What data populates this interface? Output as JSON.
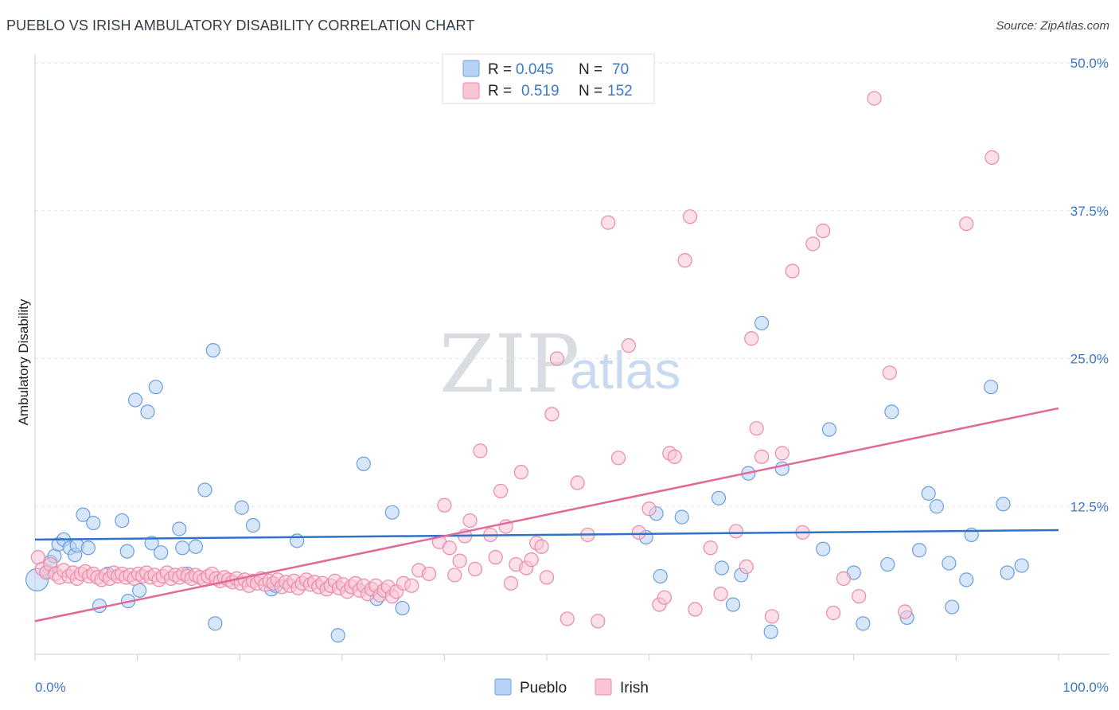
{
  "title": "PUEBLO VS IRISH AMBULATORY DISABILITY CORRELATION CHART",
  "source": "Source: ZipAtlas.com",
  "watermark": {
    "zip": "ZIP",
    "atlas": "atlas"
  },
  "colors": {
    "pueblo_fill": "#b8d2f5",
    "pueblo_stroke": "#6a9fdc",
    "pueblo_line": "#2f72c9",
    "irish_fill": "#f9c4d5",
    "irish_stroke": "#e98aa9",
    "irish_line": "#e0689a",
    "tick_text": "#3b78c6",
    "grid": "#e3e6ea"
  },
  "legend_top": {
    "rows": [
      {
        "r_label": "R =",
        "r": "0.045",
        "n_label": "N =",
        "n": "70"
      },
      {
        "r_label": "R =",
        "r": "0.519",
        "n_label": "N =",
        "n": "152"
      }
    ]
  },
  "chart_data": {
    "type": "scatter",
    "title": "PUEBLO VS IRISH AMBULATORY DISABILITY CORRELATION CHART",
    "xlabel": "",
    "ylabel": "Ambulatory Disability",
    "xlim": [
      0,
      100
    ],
    "ylim": [
      0,
      50
    ],
    "x_tick_labels": [
      "0.0%",
      "100.0%"
    ],
    "y_ticks": [
      12.5,
      25.0,
      37.5,
      50.0
    ],
    "y_tick_labels": [
      "12.5%",
      "25.0%",
      "37.5%",
      "50.0%"
    ],
    "grid": "horizontal dashed",
    "legend": "top-center and bottom-center",
    "series": [
      {
        "name": "Pueblo",
        "trend": {
          "x0": 0,
          "y0": 9.7,
          "x1": 100,
          "y1": 10.5
        },
        "points": [
          [
            0.2,
            6.3
          ],
          [
            1.2,
            7.0
          ],
          [
            1.5,
            7.8
          ],
          [
            1.9,
            8.3
          ],
          [
            2.3,
            9.3
          ],
          [
            2.8,
            9.7
          ],
          [
            3.4,
            9.0
          ],
          [
            3.9,
            8.4
          ],
          [
            4.1,
            9.2
          ],
          [
            4.7,
            11.8
          ],
          [
            5.2,
            9.0
          ],
          [
            5.7,
            11.1
          ],
          [
            6.3,
            4.1
          ],
          [
            7.1,
            6.8
          ],
          [
            8.5,
            11.3
          ],
          [
            9.0,
            8.7
          ],
          [
            9.1,
            4.5
          ],
          [
            9.8,
            21.5
          ],
          [
            10.2,
            5.4
          ],
          [
            11.0,
            20.5
          ],
          [
            11.4,
            9.4
          ],
          [
            11.8,
            22.6
          ],
          [
            12.3,
            8.6
          ],
          [
            14.1,
            10.6
          ],
          [
            14.4,
            9.0
          ],
          [
            14.9,
            6.8
          ],
          [
            15.7,
            9.1
          ],
          [
            16.6,
            13.9
          ],
          [
            17.4,
            25.7
          ],
          [
            17.6,
            2.6
          ],
          [
            20.2,
            12.4
          ],
          [
            21.3,
            10.9
          ],
          [
            23.1,
            5.5
          ],
          [
            23.5,
            5.8
          ],
          [
            25.6,
            9.6
          ],
          [
            29.6,
            1.6
          ],
          [
            32.1,
            16.1
          ],
          [
            33.4,
            4.7
          ],
          [
            34.9,
            12.0
          ],
          [
            35.9,
            3.9
          ],
          [
            59.7,
            9.9
          ],
          [
            60.7,
            11.9
          ],
          [
            61.1,
            6.6
          ],
          [
            63.2,
            11.6
          ],
          [
            66.8,
            13.2
          ],
          [
            67.1,
            7.3
          ],
          [
            68.2,
            4.2
          ],
          [
            69.0,
            6.7
          ],
          [
            69.7,
            15.3
          ],
          [
            71.0,
            28.0
          ],
          [
            71.9,
            1.9
          ],
          [
            73.0,
            15.7
          ],
          [
            77.0,
            8.9
          ],
          [
            77.6,
            19.0
          ],
          [
            80.0,
            6.9
          ],
          [
            80.9,
            2.6
          ],
          [
            83.3,
            7.6
          ],
          [
            83.7,
            20.5
          ],
          [
            85.2,
            3.1
          ],
          [
            86.4,
            8.8
          ],
          [
            87.3,
            13.6
          ],
          [
            88.1,
            12.5
          ],
          [
            89.3,
            7.7
          ],
          [
            89.6,
            4.0
          ],
          [
            91.0,
            6.3
          ],
          [
            91.5,
            10.1
          ],
          [
            93.4,
            22.6
          ],
          [
            94.6,
            12.7
          ],
          [
            95.0,
            6.9
          ],
          [
            96.4,
            7.5
          ]
        ]
      },
      {
        "name": "Irish",
        "trend": {
          "x0": 0,
          "y0": 2.8,
          "x1": 100,
          "y1": 20.8
        },
        "points": [
          [
            0.3,
            8.2
          ],
          [
            0.7,
            7.2
          ],
          [
            1.1,
            6.9
          ],
          [
            1.5,
            7.6
          ],
          [
            2.0,
            6.8
          ],
          [
            2.4,
            6.5
          ],
          [
            2.8,
            7.1
          ],
          [
            3.3,
            6.6
          ],
          [
            3.7,
            6.9
          ],
          [
            4.1,
            6.4
          ],
          [
            4.5,
            6.8
          ],
          [
            4.9,
            7.0
          ],
          [
            5.3,
            6.6
          ],
          [
            5.7,
            6.8
          ],
          [
            6.1,
            6.5
          ],
          [
            6.5,
            6.3
          ],
          [
            6.9,
            6.7
          ],
          [
            7.3,
            6.4
          ],
          [
            7.7,
            6.9
          ],
          [
            8.1,
            6.6
          ],
          [
            8.5,
            6.8
          ],
          [
            8.9,
            6.5
          ],
          [
            9.3,
            6.7
          ],
          [
            9.7,
            6.4
          ],
          [
            10.1,
            6.8
          ],
          [
            10.5,
            6.6
          ],
          [
            10.9,
            6.9
          ],
          [
            11.3,
            6.5
          ],
          [
            11.7,
            6.7
          ],
          [
            12.1,
            6.3
          ],
          [
            12.5,
            6.6
          ],
          [
            12.9,
            6.9
          ],
          [
            13.3,
            6.4
          ],
          [
            13.7,
            6.7
          ],
          [
            14.1,
            6.5
          ],
          [
            14.5,
            6.8
          ],
          [
            14.9,
            6.6
          ],
          [
            15.3,
            6.4
          ],
          [
            15.7,
            6.7
          ],
          [
            16.1,
            6.5
          ],
          [
            16.5,
            6.3
          ],
          [
            16.9,
            6.6
          ],
          [
            17.3,
            6.8
          ],
          [
            17.7,
            6.4
          ],
          [
            18.1,
            6.2
          ],
          [
            18.5,
            6.5
          ],
          [
            18.9,
            6.3
          ],
          [
            19.3,
            6.1
          ],
          [
            19.7,
            6.4
          ],
          [
            20.1,
            6.0
          ],
          [
            20.5,
            6.3
          ],
          [
            20.9,
            5.8
          ],
          [
            21.3,
            6.2
          ],
          [
            21.7,
            6.0
          ],
          [
            22.1,
            6.4
          ],
          [
            22.5,
            5.9
          ],
          [
            22.9,
            6.2
          ],
          [
            23.3,
            6.0
          ],
          [
            23.7,
            6.3
          ],
          [
            24.1,
            5.7
          ],
          [
            24.5,
            6.1
          ],
          [
            24.9,
            5.8
          ],
          [
            25.3,
            6.2
          ],
          [
            25.7,
            5.6
          ],
          [
            26.1,
            6.0
          ],
          [
            26.5,
            6.3
          ],
          [
            26.9,
            5.9
          ],
          [
            27.3,
            6.1
          ],
          [
            27.7,
            5.7
          ],
          [
            28.1,
            6.0
          ],
          [
            28.5,
            5.5
          ],
          [
            28.9,
            5.8
          ],
          [
            29.3,
            6.2
          ],
          [
            29.7,
            5.6
          ],
          [
            30.1,
            5.9
          ],
          [
            30.5,
            5.3
          ],
          [
            30.9,
            5.7
          ],
          [
            31.3,
            6.0
          ],
          [
            31.7,
            5.4
          ],
          [
            32.1,
            5.8
          ],
          [
            32.5,
            5.1
          ],
          [
            32.9,
            5.5
          ],
          [
            33.3,
            5.8
          ],
          [
            33.7,
            5.0
          ],
          [
            34.1,
            5.4
          ],
          [
            34.5,
            5.7
          ],
          [
            34.9,
            4.9
          ],
          [
            35.3,
            5.3
          ],
          [
            36.0,
            6.0
          ],
          [
            36.8,
            5.8
          ],
          [
            37.5,
            7.1
          ],
          [
            38.5,
            6.8
          ],
          [
            39.5,
            9.5
          ],
          [
            40.0,
            12.6
          ],
          [
            40.5,
            9.0
          ],
          [
            41.0,
            6.7
          ],
          [
            41.5,
            7.9
          ],
          [
            42.0,
            10.0
          ],
          [
            42.5,
            11.3
          ],
          [
            43.0,
            7.2
          ],
          [
            43.5,
            17.2
          ],
          [
            44.5,
            10.1
          ],
          [
            45.0,
            8.2
          ],
          [
            45.5,
            13.8
          ],
          [
            46.0,
            10.8
          ],
          [
            46.5,
            6.0
          ],
          [
            47.0,
            7.6
          ],
          [
            47.5,
            15.4
          ],
          [
            48.0,
            7.3
          ],
          [
            48.5,
            8.0
          ],
          [
            49.0,
            9.4
          ],
          [
            49.5,
            9.1
          ],
          [
            50.0,
            6.5
          ],
          [
            50.5,
            20.3
          ],
          [
            51.0,
            25.0
          ],
          [
            52.0,
            3.0
          ],
          [
            53.0,
            14.5
          ],
          [
            54.0,
            10.1
          ],
          [
            55.0,
            2.8
          ],
          [
            56.0,
            36.5
          ],
          [
            57.0,
            16.6
          ],
          [
            58.0,
            26.1
          ],
          [
            59.0,
            10.3
          ],
          [
            60.0,
            12.3
          ],
          [
            61.0,
            4.2
          ],
          [
            61.5,
            4.8
          ],
          [
            62.0,
            17.0
          ],
          [
            62.5,
            16.7
          ],
          [
            63.5,
            33.3
          ],
          [
            64.0,
            37.0
          ],
          [
            64.5,
            3.8
          ],
          [
            66.0,
            9.0
          ],
          [
            67.0,
            5.1
          ],
          [
            68.5,
            10.4
          ],
          [
            69.5,
            7.4
          ],
          [
            70.0,
            26.7
          ],
          [
            70.5,
            19.1
          ],
          [
            71.0,
            16.7
          ],
          [
            72.0,
            3.2
          ],
          [
            73.0,
            17.0
          ],
          [
            74.0,
            32.4
          ],
          [
            75.0,
            10.3
          ],
          [
            76.0,
            34.7
          ],
          [
            77.0,
            35.8
          ],
          [
            78.0,
            3.5
          ],
          [
            79.0,
            6.4
          ],
          [
            80.5,
            4.9
          ],
          [
            82.0,
            47.0
          ],
          [
            83.5,
            23.8
          ],
          [
            85.0,
            3.6
          ],
          [
            91.0,
            36.4
          ],
          [
            93.5,
            42.0
          ]
        ]
      }
    ]
  },
  "legend_bottom": {
    "items": [
      "Pueblo",
      "Irish"
    ]
  }
}
